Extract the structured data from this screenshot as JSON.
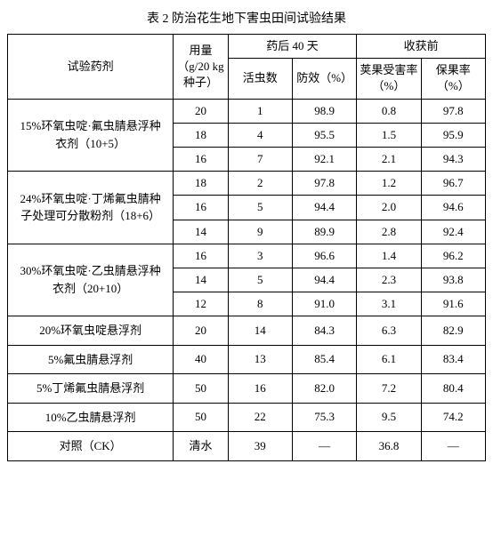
{
  "title": "表 2  防治花生地下害虫田间试验结果",
  "header": {
    "agent": "试验药剂",
    "dose": "用量（g/20 kg 种子）",
    "after40_group": "药后 40 天",
    "live": "活虫数",
    "efficacy": "防效（%）",
    "harvest_group": "收获前",
    "damage_rate": "荚果受害率（%）",
    "keep_rate": "保果率（%）"
  },
  "rows": [
    {
      "agent": "15%环氧虫啶·氟虫腈悬浮种衣剂（10+5）",
      "dose": "20",
      "live": "1",
      "eff": "98.9",
      "dmg": "0.8",
      "keep": "97.8"
    },
    {
      "dose": "18",
      "live": "4",
      "eff": "95.5",
      "dmg": "1.5",
      "keep": "95.9"
    },
    {
      "dose": "16",
      "live": "7",
      "eff": "92.1",
      "dmg": "2.1",
      "keep": "94.3"
    },
    {
      "agent": "24%环氧虫啶·丁烯氟虫腈种子处理可分散粉剂（18+6）",
      "dose": "18",
      "live": "2",
      "eff": "97.8",
      "dmg": "1.2",
      "keep": "96.7"
    },
    {
      "dose": "16",
      "live": "5",
      "eff": "94.4",
      "dmg": "2.0",
      "keep": "94.6"
    },
    {
      "dose": "14",
      "live": "9",
      "eff": "89.9",
      "dmg": "2.8",
      "keep": "92.4"
    },
    {
      "agent": "30%环氧虫啶·乙虫腈悬浮种衣剂（20+10）",
      "dose": "16",
      "live": "3",
      "eff": "96.6",
      "dmg": "1.4",
      "keep": "96.2"
    },
    {
      "dose": "14",
      "live": "5",
      "eff": "94.4",
      "dmg": "2.3",
      "keep": "93.8"
    },
    {
      "dose": "12",
      "live": "8",
      "eff": "91.0",
      "dmg": "3.1",
      "keep": "91.6"
    },
    {
      "agent": "20%环氧虫啶悬浮剂",
      "dose": "20",
      "live": "14",
      "eff": "84.3",
      "dmg": "6.3",
      "keep": "82.9"
    },
    {
      "agent": "5%氟虫腈悬浮剂",
      "dose": "40",
      "live": "13",
      "eff": "85.4",
      "dmg": "6.1",
      "keep": "83.4"
    },
    {
      "agent": "5%丁烯氟虫腈悬浮剂",
      "dose": "50",
      "live": "16",
      "eff": "82.0",
      "dmg": "7.2",
      "keep": "80.4"
    },
    {
      "agent": "10%乙虫腈悬浮剂",
      "dose": "50",
      "live": "22",
      "eff": "75.3",
      "dmg": "9.5",
      "keep": "74.2"
    },
    {
      "agent": "对照（CK）",
      "dose": "清水",
      "live": "39",
      "eff": "—",
      "dmg": "36.8",
      "keep": "—"
    }
  ]
}
